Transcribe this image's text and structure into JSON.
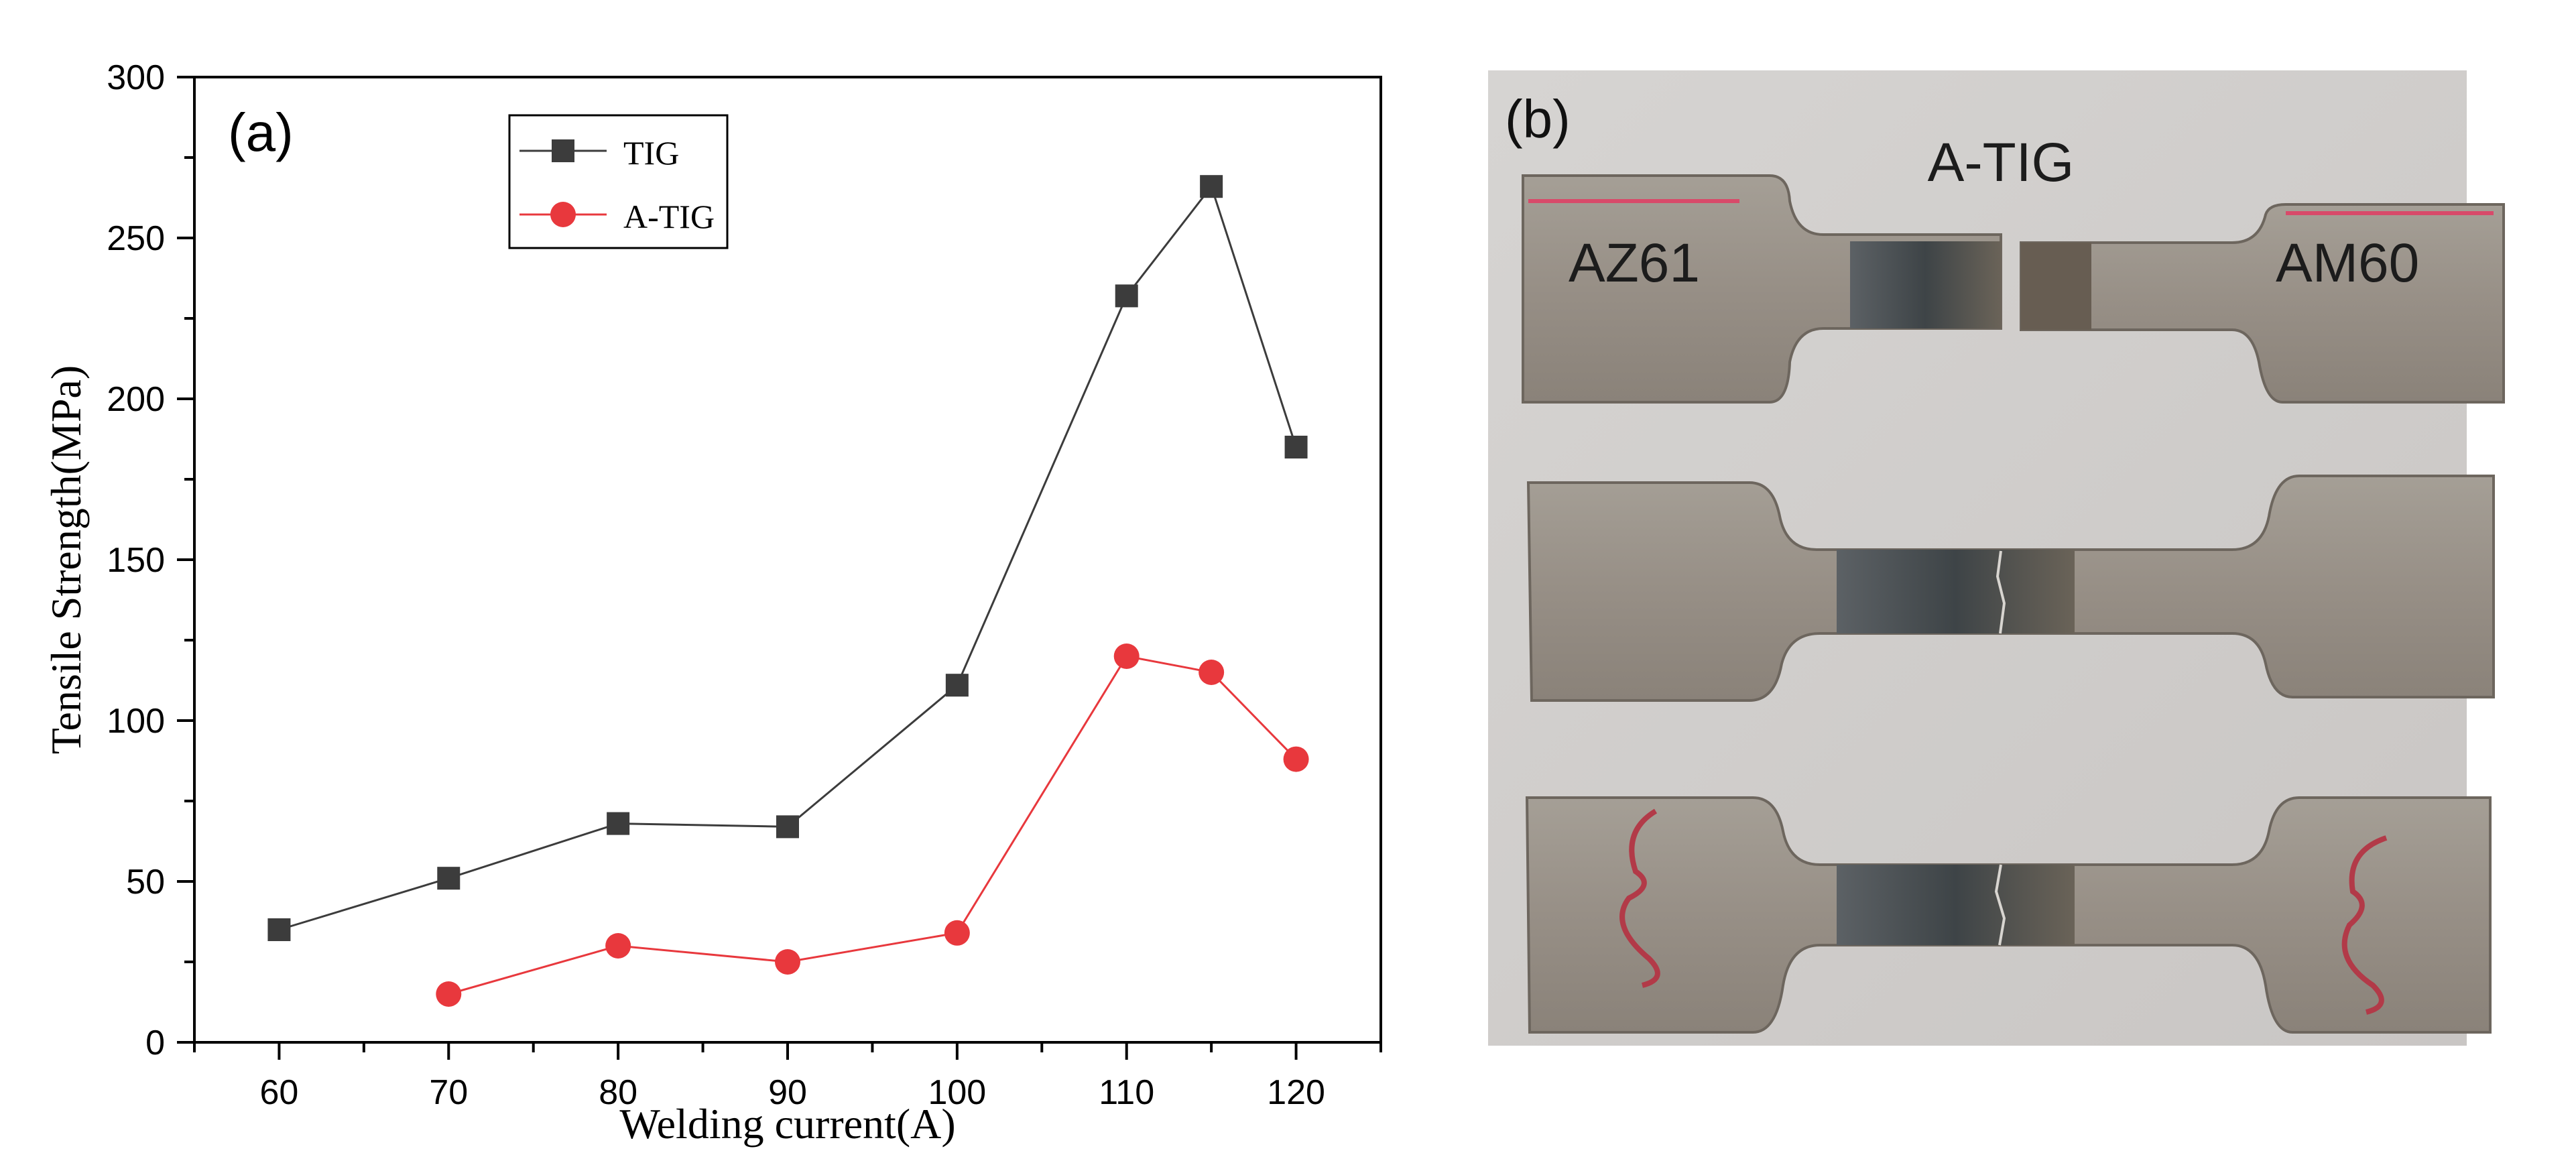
{
  "panel_a": {
    "label": "(a)",
    "chart_data": {
      "type": "line",
      "xlabel": "Welding current(A)",
      "ylabel": "Tensile Strength(MPa)",
      "xlim": [
        55,
        125
      ],
      "ylim": [
        0,
        300
      ],
      "xticks": [
        60,
        70,
        80,
        90,
        100,
        110,
        120
      ],
      "yticks": [
        0,
        50,
        100,
        150,
        200,
        250,
        300
      ],
      "grid": false,
      "legend_position": "top-left",
      "series": [
        {
          "name": "TIG",
          "color": "#3c3c3c",
          "marker": "square",
          "x": [
            60,
            70,
            80,
            90,
            100,
            110,
            115,
            120
          ],
          "y": [
            35,
            51,
            68,
            67,
            111,
            232,
            266,
            185
          ]
        },
        {
          "name": "A-TIG",
          "color": "#e8383d",
          "marker": "circle",
          "x": [
            70,
            80,
            90,
            100,
            110,
            115,
            120
          ],
          "y": [
            15,
            30,
            25,
            34,
            120,
            115,
            88
          ]
        }
      ]
    }
  },
  "panel_b": {
    "label": "(b)",
    "title": "A-TIG",
    "left_material": "AZ61",
    "right_material": "AM60"
  }
}
